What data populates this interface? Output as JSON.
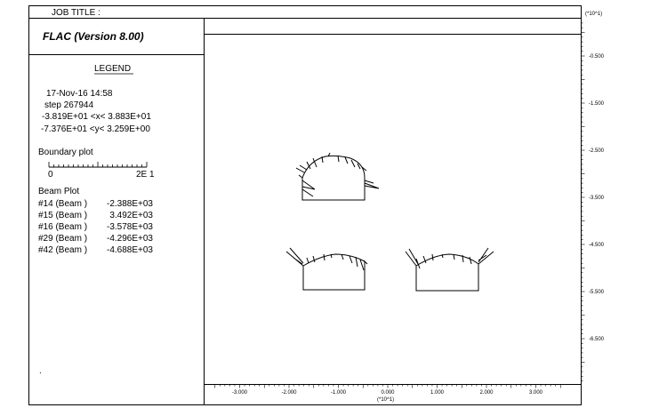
{
  "job_title_label": "JOB TITLE :",
  "program_title": "FLAC (Version 8.00)",
  "legend": {
    "heading": "LEGEND",
    "date_line": "17-Nov-16  14:58",
    "step_line": "step   267944",
    "x_range_line": "-3.819E+01 <x<  3.883E+01",
    "y_range_line": "-7.376E+01 <y<  3.259E+00",
    "boundary_title": "Boundary plot",
    "scale_left": "0",
    "scale_right": "2E  1",
    "beam_title": "Beam Plot",
    "beams": [
      {
        "label": "#14 (Beam )",
        "value": "-2.388E+03"
      },
      {
        "label": "#15 (Beam )",
        "value": "3.492E+03"
      },
      {
        "label": "#16 (Beam )",
        "value": "-3.578E+03"
      },
      {
        "label": "#29 (Beam )",
        "value": "-4.296E+03"
      },
      {
        "label": "#42 (Beam )",
        "value": "-4.688E+03"
      }
    ]
  },
  "axis": {
    "y_multiplier": "(*10^1)",
    "x_multiplier": "(*10^1)",
    "x_ticks": [
      {
        "label": "-3.000",
        "value": -3.0
      },
      {
        "label": "-2.000",
        "value": -2.0
      },
      {
        "label": "-1.000",
        "value": -1.0
      },
      {
        "label": "0.000",
        "value": 0.0
      },
      {
        "label": "1.000",
        "value": 1.0
      },
      {
        "label": "2.000",
        "value": 2.0
      },
      {
        "label": "3.000",
        "value": 3.0
      }
    ],
    "y_ticks": [
      {
        "label": "-0.500",
        "value": -0.5
      },
      {
        "label": "-1.500",
        "value": -1.5
      },
      {
        "label": "-2.500",
        "value": -2.5
      },
      {
        "label": "-3.500",
        "value": -3.5
      },
      {
        "label": "-4.500",
        "value": -4.5
      },
      {
        "label": "-5.500",
        "value": -5.5
      },
      {
        "label": "-6.500",
        "value": -6.5
      }
    ]
  },
  "footnote": "."
}
